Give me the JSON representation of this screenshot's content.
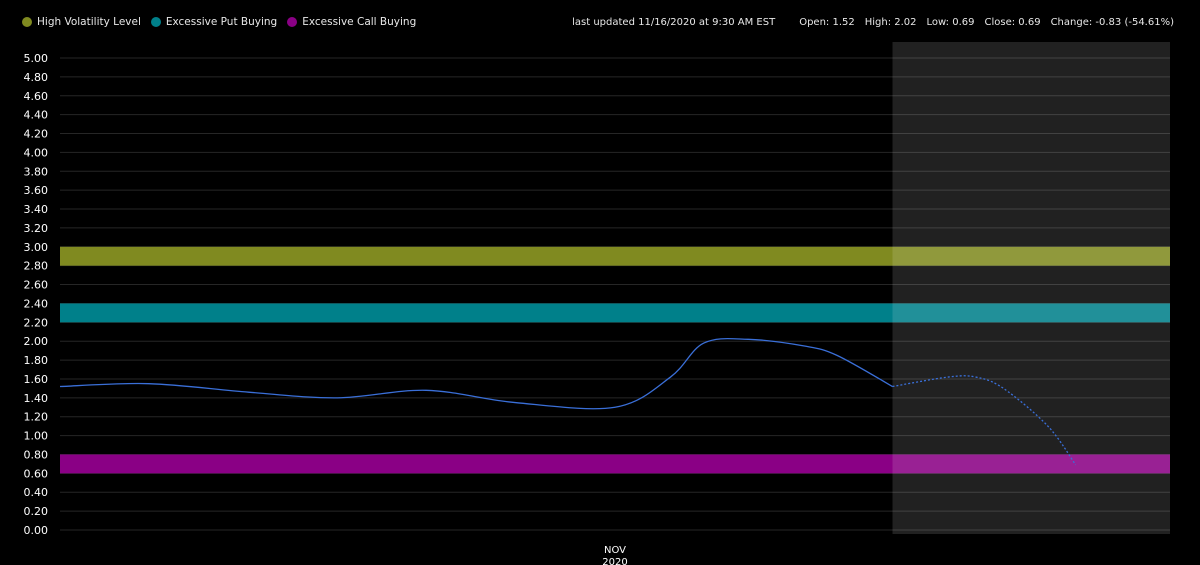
{
  "legend": [
    {
      "label": "High Volatility Level",
      "color": "#808a20"
    },
    {
      "label": "Excessive Put Buying",
      "color": "#00808a"
    },
    {
      "label": "Excessive Call Buying",
      "color": "#8a0085"
    }
  ],
  "info": {
    "updated": "last updated 11/16/2020 at 9:30 AM EST",
    "open": "Open: 1.52",
    "high": "High: 2.02",
    "low": "Low: 0.69",
    "close": "Close: 0.69",
    "change": "Change: -0.83 (-54.61%)"
  },
  "chart_data": {
    "type": "line",
    "xlabel": "",
    "ylabel": "",
    "ylim": [
      0,
      5
    ],
    "yticks": [
      "0.00",
      "0.20",
      "0.40",
      "0.60",
      "0.80",
      "1.00",
      "1.20",
      "1.40",
      "1.60",
      "1.80",
      "2.00",
      "2.20",
      "2.40",
      "2.60",
      "2.80",
      "3.00",
      "3.20",
      "3.40",
      "3.60",
      "3.80",
      "4.00",
      "4.20",
      "4.40",
      "4.60",
      "4.80",
      "5.00"
    ],
    "xtick": {
      "month": "NOV",
      "year": "2020",
      "x": 0.5
    },
    "xlim": [
      0,
      1
    ],
    "grid": true,
    "bands": [
      {
        "name": "High Volatility Level",
        "y0": 2.8,
        "y1": 3.0,
        "color": "#808a20"
      },
      {
        "name": "Excessive Put Buying",
        "y0": 2.2,
        "y1": 2.4,
        "color": "#00808a"
      },
      {
        "name": "Excessive Call Buying",
        "y0": 0.6,
        "y1": 0.8,
        "color": "#8a0085"
      }
    ],
    "shaded_region": {
      "x0": 0.75,
      "x1": 1.0,
      "color": "#2a2a2a"
    },
    "series": [
      {
        "style": "solid",
        "color": "#3a6fd8",
        "x": [
          0.0,
          0.08,
          0.17,
          0.25,
          0.33,
          0.41,
          0.5,
          0.55,
          0.58,
          0.62,
          0.67,
          0.7,
          0.75
        ],
        "y": [
          1.52,
          1.55,
          1.46,
          1.4,
          1.48,
          1.35,
          1.3,
          1.62,
          1.98,
          2.02,
          1.95,
          1.85,
          1.52
        ]
      },
      {
        "style": "dashed",
        "color": "#3a6fd8",
        "x": [
          0.75,
          0.8,
          0.825,
          0.85,
          0.89,
          0.915
        ],
        "y": [
          1.52,
          1.62,
          1.62,
          1.5,
          1.1,
          0.69
        ]
      }
    ]
  }
}
